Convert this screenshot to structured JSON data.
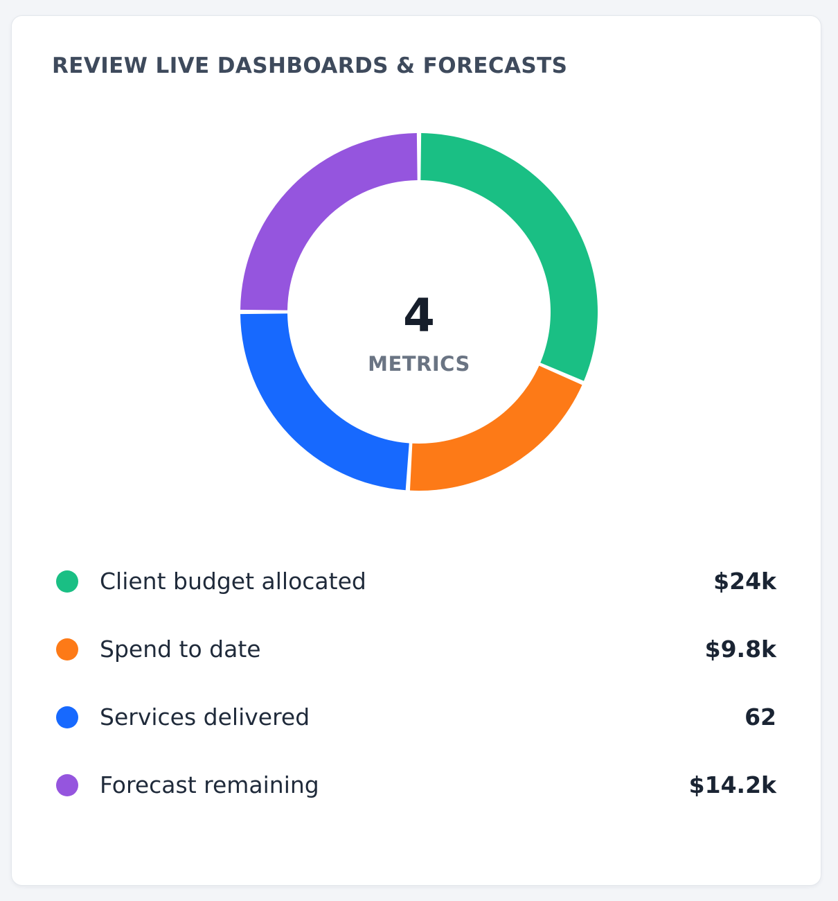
{
  "card": {
    "title": "REVIEW LIVE DASHBOARDS & FORECASTS"
  },
  "chart_data": {
    "type": "pie",
    "title": "",
    "center_value": "4",
    "center_label": "METRICS",
    "categories": [
      "Client budget allocated",
      "Spend to date",
      "Services delivered",
      "Forecast remaining"
    ],
    "display_values": [
      "$24k",
      "$9.8k",
      "62",
      "$14.2k"
    ],
    "values": [
      31.5,
      19.5,
      24,
      25
    ],
    "colors": [
      "#1abf84",
      "#fd7a17",
      "#1769fe",
      "#9555de"
    ],
    "legend": "bottom"
  }
}
